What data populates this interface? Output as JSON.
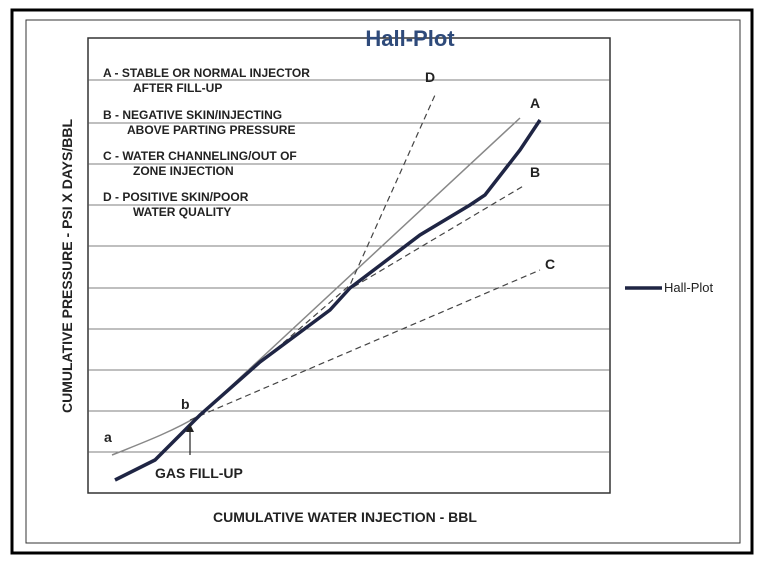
{
  "title": "Hall-Plot",
  "legend": {
    "label": "Hall-Plot"
  },
  "axes": {
    "y_label": "CUMULATIVE PRESSURE - PSI X DAYS/BBL",
    "x_label": "CUMULATIVE WATER INJECTION - BBL"
  },
  "annotations": [
    {
      "line1": "A - STABLE OR NORMAL INJECTOR",
      "line2": "AFTER FILL-UP"
    },
    {
      "line1": "B - NEGATIVE SKIN/INJECTING",
      "line2": "ABOVE PARTING PRESSURE"
    },
    {
      "line1": "C - WATER CHANNELING/OUT OF",
      "line2": "ZONE INJECTION"
    },
    {
      "line1": "D - POSITIVE SKIN/POOR",
      "line2": "WATER QUALITY"
    }
  ],
  "curve_labels": {
    "A": "A",
    "B": "B",
    "C": "C",
    "D": "D",
    "a": "a",
    "b": "b"
  },
  "gas_fill_up": "GAS FILL-UP"
}
